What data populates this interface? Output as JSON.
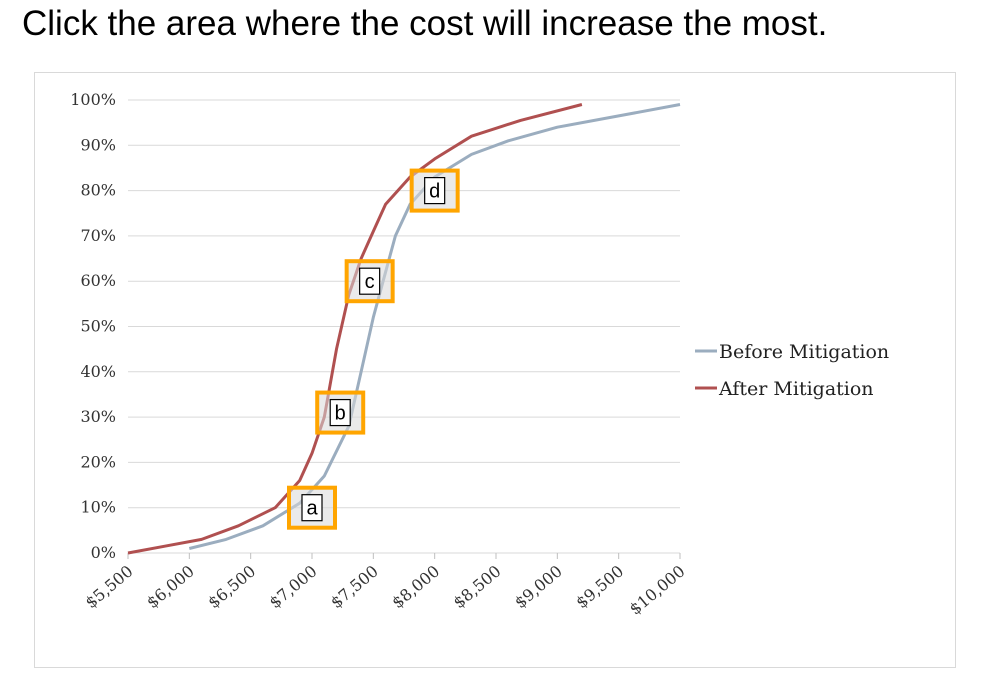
{
  "prompt": "Click the area where the cost will increase the most.",
  "chart_data": {
    "type": "line",
    "title": "",
    "xlabel": "",
    "ylabel": "",
    "x_ticks": [
      "$5,500",
      "$6,000",
      "$6,500",
      "$7,000",
      "$7,500",
      "$8,000",
      "$8,500",
      "$9,000",
      "$9,500",
      "$10,000"
    ],
    "y_ticks": [
      "0%",
      "10%",
      "20%",
      "30%",
      "40%",
      "50%",
      "60%",
      "70%",
      "80%",
      "90%",
      "100%"
    ],
    "xlim": [
      5500,
      10000
    ],
    "ylim": [
      0,
      100
    ],
    "grid": "horizontal",
    "legend_position": "right",
    "series": [
      {
        "name": "Before Mitigation",
        "color": "#9badbf",
        "points": [
          [
            6000,
            1
          ],
          [
            6300,
            3
          ],
          [
            6600,
            6
          ],
          [
            6900,
            11
          ],
          [
            7100,
            17
          ],
          [
            7300,
            28
          ],
          [
            7400,
            40
          ],
          [
            7500,
            52
          ],
          [
            7580,
            60
          ],
          [
            7680,
            70
          ],
          [
            7800,
            77
          ],
          [
            8000,
            83
          ],
          [
            8300,
            88
          ],
          [
            8600,
            91
          ],
          [
            9000,
            94
          ],
          [
            9500,
            96.5
          ],
          [
            10000,
            99
          ]
        ]
      },
      {
        "name": "After Mitigation",
        "color": "#b05050",
        "points": [
          [
            5500,
            0
          ],
          [
            5800,
            1.5
          ],
          [
            6100,
            3
          ],
          [
            6400,
            6
          ],
          [
            6700,
            10
          ],
          [
            6900,
            16
          ],
          [
            7000,
            22
          ],
          [
            7100,
            30
          ],
          [
            7200,
            45
          ],
          [
            7300,
            57
          ],
          [
            7400,
            65
          ],
          [
            7500,
            71
          ],
          [
            7600,
            77
          ],
          [
            7800,
            83
          ],
          [
            8000,
            87
          ],
          [
            8300,
            92
          ],
          [
            8700,
            95.5
          ],
          [
            9200,
            99
          ]
        ]
      }
    ]
  },
  "areas": [
    {
      "label": "a",
      "x": 7000,
      "y": 10
    },
    {
      "label": "b",
      "x": 7230,
      "y": 31
    },
    {
      "label": "c",
      "x": 7470,
      "y": 60
    },
    {
      "label": "d",
      "x": 8000,
      "y": 80
    }
  ],
  "colors": {
    "area_border": "#ffa500",
    "area_fill": "#d8d8d8",
    "gridline": "#d9d9d9"
  }
}
